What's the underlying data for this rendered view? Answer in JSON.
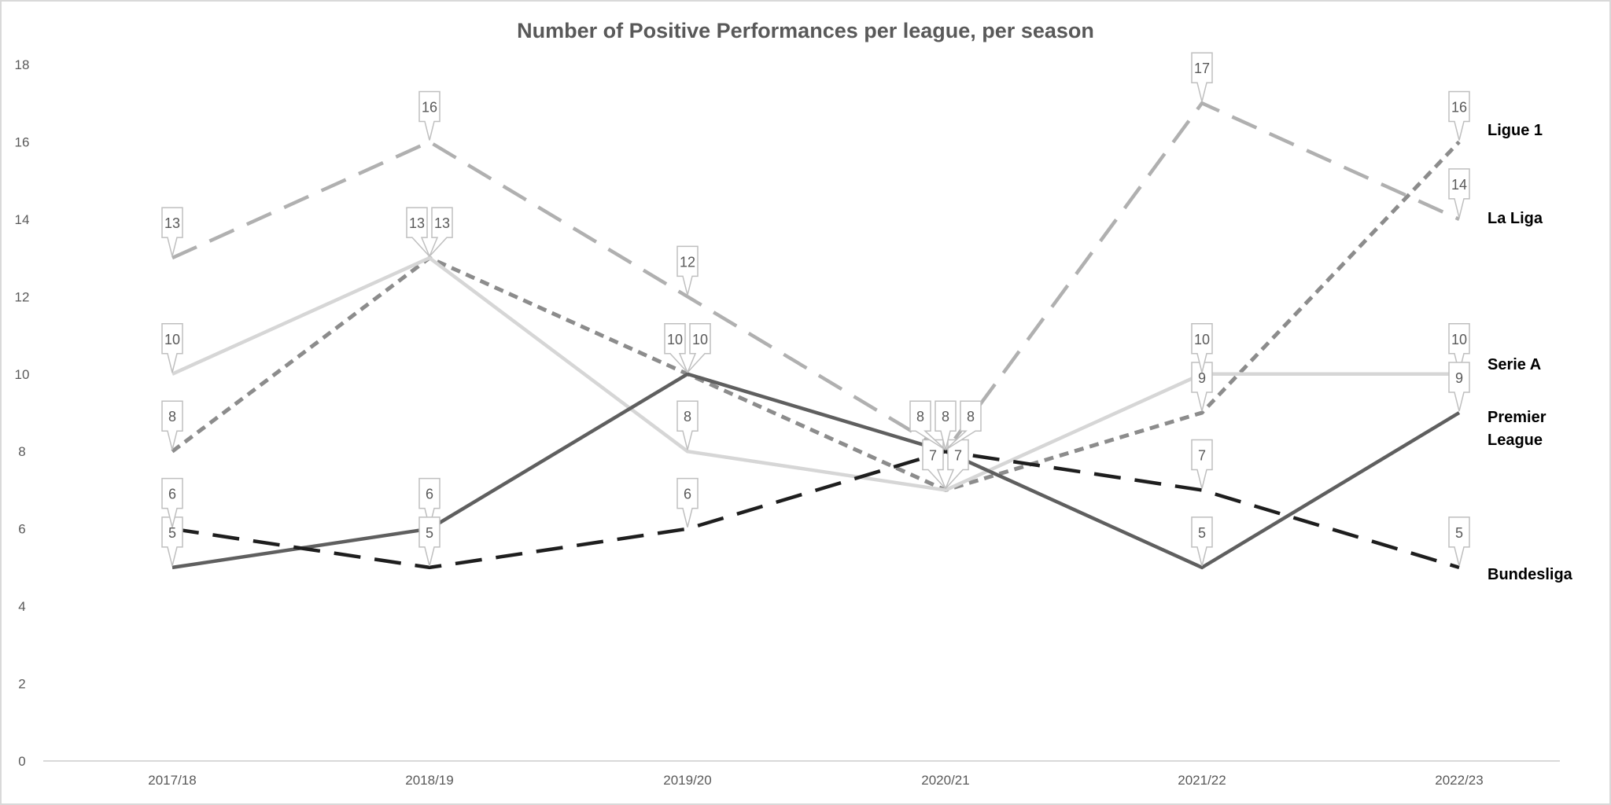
{
  "chart_data": {
    "type": "line",
    "title": "Number of Positive Performances per league, per season",
    "xlabel": "",
    "ylabel": "",
    "categories": [
      "2017/18",
      "2018/19",
      "2019/20",
      "2020/21",
      "2021/22",
      "2022/23"
    ],
    "ylim": [
      0,
      18
    ],
    "yticks": [
      0,
      2,
      4,
      6,
      8,
      10,
      12,
      14,
      16,
      18
    ],
    "grid": false,
    "legend": "right, labels at line ends",
    "data_labels": true,
    "series": [
      {
        "name": "Ligue 1",
        "values": [
          8,
          13,
          10,
          7,
          9,
          16
        ],
        "color": "#8c8c8c",
        "dash": "short-dash"
      },
      {
        "name": "La Liga",
        "values": [
          13,
          16,
          12,
          8,
          17,
          14
        ],
        "color": "#b0b0b0",
        "dash": "long-dash"
      },
      {
        "name": "Serie A",
        "values": [
          10,
          13,
          8,
          7,
          10,
          10
        ],
        "color": "#d6d6d6",
        "dash": "solid"
      },
      {
        "name": "Premier League",
        "values": [
          5,
          6,
          10,
          8,
          5,
          9
        ],
        "color": "#5f5f5f",
        "dash": "solid"
      },
      {
        "name": "Bundesliga",
        "values": [
          6,
          5,
          6,
          8,
          7,
          5
        ],
        "color": "#1e1e1e",
        "dash": "long-dash"
      }
    ]
  }
}
